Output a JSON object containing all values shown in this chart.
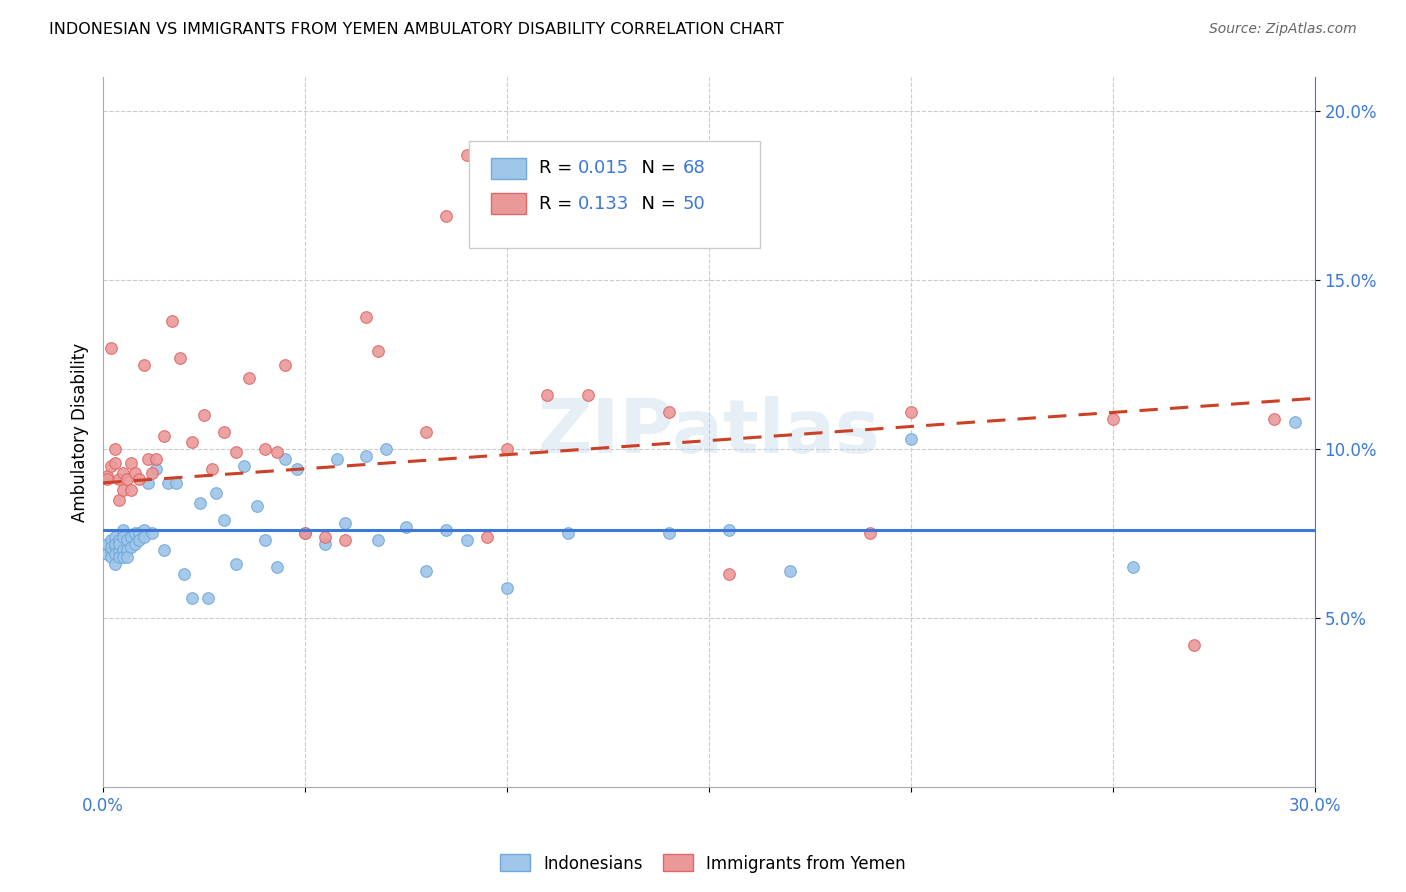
{
  "title": "INDONESIAN VS IMMIGRANTS FROM YEMEN AMBULATORY DISABILITY CORRELATION CHART",
  "source": "Source: ZipAtlas.com",
  "ylabel": "Ambulatory Disability",
  "xlim": [
    0.0,
    0.3
  ],
  "ylim": [
    0.0,
    0.21
  ],
  "xticks": [
    0.0,
    0.05,
    0.1,
    0.15,
    0.2,
    0.25,
    0.3
  ],
  "xticklabels": [
    "0.0%",
    "",
    "",
    "",
    "",
    "",
    "30.0%"
  ],
  "yticks": [
    0.05,
    0.1,
    0.15,
    0.2
  ],
  "yticklabels": [
    "5.0%",
    "10.0%",
    "15.0%",
    "20.0%"
  ],
  "indonesian_R": 0.015,
  "indonesian_N": 68,
  "yemen_R": 0.133,
  "yemen_N": 50,
  "color_blue_scatter": "#9fc5e8",
  "color_pink_scatter": "#ea9999",
  "color_blue_edge": "#6fa8dc",
  "color_pink_edge": "#e06666",
  "color_blue_line": "#3c78d8",
  "color_pink_line": "#cc4125",
  "watermark": "ZIPatlas",
  "indonesian_x": [
    0.001,
    0.001,
    0.002,
    0.002,
    0.002,
    0.002,
    0.003,
    0.003,
    0.003,
    0.003,
    0.003,
    0.004,
    0.004,
    0.004,
    0.004,
    0.005,
    0.005,
    0.005,
    0.005,
    0.006,
    0.006,
    0.006,
    0.007,
    0.007,
    0.008,
    0.008,
    0.009,
    0.009,
    0.01,
    0.01,
    0.011,
    0.012,
    0.013,
    0.015,
    0.016,
    0.018,
    0.02,
    0.022,
    0.024,
    0.026,
    0.028,
    0.03,
    0.033,
    0.035,
    0.038,
    0.04,
    0.043,
    0.045,
    0.048,
    0.05,
    0.055,
    0.058,
    0.06,
    0.065,
    0.068,
    0.07,
    0.075,
    0.08,
    0.085,
    0.09,
    0.1,
    0.115,
    0.14,
    0.155,
    0.17,
    0.2,
    0.255,
    0.295
  ],
  "indonesian_y": [
    0.072,
    0.069,
    0.073,
    0.07,
    0.068,
    0.071,
    0.074,
    0.071,
    0.072,
    0.069,
    0.066,
    0.073,
    0.07,
    0.068,
    0.072,
    0.076,
    0.074,
    0.07,
    0.068,
    0.073,
    0.07,
    0.068,
    0.074,
    0.071,
    0.075,
    0.072,
    0.075,
    0.073,
    0.076,
    0.074,
    0.09,
    0.075,
    0.094,
    0.07,
    0.09,
    0.09,
    0.063,
    0.056,
    0.084,
    0.056,
    0.087,
    0.079,
    0.066,
    0.095,
    0.083,
    0.073,
    0.065,
    0.097,
    0.094,
    0.075,
    0.072,
    0.097,
    0.078,
    0.098,
    0.073,
    0.1,
    0.077,
    0.064,
    0.076,
    0.073,
    0.059,
    0.075,
    0.075,
    0.076,
    0.064,
    0.103,
    0.065,
    0.108
  ],
  "yemen_x": [
    0.001,
    0.001,
    0.002,
    0.002,
    0.003,
    0.003,
    0.004,
    0.004,
    0.005,
    0.005,
    0.006,
    0.007,
    0.007,
    0.008,
    0.009,
    0.01,
    0.011,
    0.012,
    0.013,
    0.015,
    0.017,
    0.019,
    0.022,
    0.025,
    0.027,
    0.03,
    0.033,
    0.036,
    0.04,
    0.043,
    0.045,
    0.05,
    0.055,
    0.06,
    0.065,
    0.068,
    0.08,
    0.085,
    0.09,
    0.095,
    0.1,
    0.11,
    0.12,
    0.14,
    0.155,
    0.19,
    0.2,
    0.25,
    0.27,
    0.29
  ],
  "yemen_y": [
    0.092,
    0.091,
    0.095,
    0.13,
    0.096,
    0.1,
    0.091,
    0.085,
    0.088,
    0.093,
    0.091,
    0.096,
    0.088,
    0.093,
    0.091,
    0.125,
    0.097,
    0.093,
    0.097,
    0.104,
    0.138,
    0.127,
    0.102,
    0.11,
    0.094,
    0.105,
    0.099,
    0.121,
    0.1,
    0.099,
    0.125,
    0.075,
    0.074,
    0.073,
    0.139,
    0.129,
    0.105,
    0.169,
    0.187,
    0.074,
    0.1,
    0.116,
    0.116,
    0.111,
    0.063,
    0.075,
    0.111,
    0.109,
    0.042,
    0.109
  ]
}
